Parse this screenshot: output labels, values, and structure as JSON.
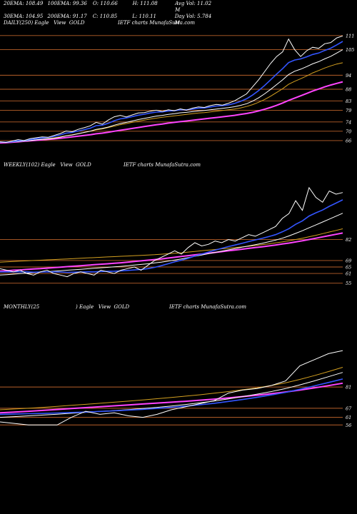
{
  "stats": {
    "ema20": "20EMA: 108.49",
    "ema100": "100EMA: 99.36",
    "open": "O: 110.66",
    "high": "H: 111.08",
    "avgvol": "Avg Vol: 11.02  M",
    "ema30": "30EMA: 104.95",
    "ema200": "200EMA: 91.17",
    "close": "C: 110.85",
    "low": "L: 110.11",
    "dayvol": "Day Vol: 5.784  M"
  },
  "panels": [
    {
      "title_left": "DAILY(250) Eagle   View  GOLD",
      "title_right": "IETF charts MunafaSutra.com",
      "levels": [
        "111",
        "105",
        "94",
        "88",
        "83",
        "79",
        "74",
        "70",
        "66"
      ]
    },
    {
      "title_left": "WEEKLY(102) Eagle   View  GOLD",
      "title_right": "IETF charts MunafaSutra.com",
      "levels": [
        "82",
        "69",
        "65",
        "61",
        "55"
      ]
    },
    {
      "title_left": "MONTHLY(25",
      "title_mid": ") Eagle   View  GOLD",
      "title_right": "IETF charts MunafaSutra.com",
      "levels": [
        "81",
        "67",
        "61",
        "56"
      ]
    }
  ],
  "chart_data": [
    {
      "type": "line",
      "title": "DAILY(250) Eagle View GOLD",
      "ylim": [
        62,
        114
      ],
      "levels": [
        111,
        105,
        94,
        88,
        83,
        79,
        74,
        70,
        66
      ],
      "series": [
        {
          "color": "#ffffff",
          "values": [
            65.5,
            65.2,
            65.8,
            66.4,
            66.0,
            66.8,
            67.2,
            67.6,
            67.4,
            68.2,
            69.0,
            70.1,
            69.8,
            70.8,
            71.5,
            72.3,
            73.8,
            73.0,
            74.8,
            76.2,
            76.8,
            76.1,
            77.0,
            77.8,
            78.0,
            78.6,
            79.0,
            78.5,
            79.2,
            78.8,
            79.6,
            79.0,
            79.9,
            80.4,
            80.2,
            81.0,
            81.5,
            81.2,
            82.0,
            83.0,
            84.5,
            86.0,
            89.0,
            92.0,
            95.5,
            99.0,
            102.0,
            104.0,
            109.5,
            105.0,
            102.0,
            104.5,
            106.0,
            105.5,
            107.5,
            108.0,
            110.0,
            110.85
          ]
        },
        {
          "color": "#3355ff",
          "values": [
            65.4,
            65.3,
            65.5,
            65.9,
            66.0,
            66.4,
            66.8,
            67.1,
            67.3,
            67.8,
            68.4,
            69.2,
            69.5,
            70.1,
            70.7,
            71.3,
            72.4,
            72.6,
            73.4,
            74.5,
            75.3,
            75.7,
            76.3,
            76.9,
            77.3,
            77.8,
            78.2,
            78.3,
            78.7,
            78.8,
            79.2,
            79.2,
            79.5,
            79.9,
            80.0,
            80.4,
            80.8,
            81.0,
            81.3,
            81.9,
            82.8,
            83.9,
            85.5,
            87.4,
            89.6,
            92.0,
            94.5,
            96.8,
            99.4,
            100.5,
            101.0,
            101.9,
            102.9,
            103.5,
            104.6,
            105.6,
            107.0,
            108.49
          ]
        },
        {
          "color": "#ffffff",
          "values": [
            65.3,
            65.3,
            65.4,
            65.6,
            65.8,
            66.0,
            66.3,
            66.5,
            66.7,
            67.0,
            67.4,
            68.0,
            68.4,
            68.9,
            69.5,
            70.0,
            70.8,
            71.2,
            71.8,
            72.6,
            73.3,
            73.8,
            74.4,
            75.0,
            75.5,
            76.0,
            76.5,
            76.8,
            77.2,
            77.5,
            77.9,
            78.1,
            78.4,
            78.7,
            78.9,
            79.2,
            79.5,
            79.8,
            80.1,
            80.5,
            81.1,
            81.8,
            82.9,
            84.3,
            86.0,
            87.9,
            90.0,
            92.0,
            94.3,
            95.7,
            96.6,
            97.7,
            98.9,
            99.8,
            101.0,
            102.1,
            103.5,
            104.95
          ]
        },
        {
          "color": "#d4a020",
          "values": [
            65.2,
            65.3,
            65.4,
            65.6,
            65.8,
            66.0,
            66.3,
            66.6,
            66.9,
            67.2,
            67.6,
            68.1,
            68.5,
            69.0,
            69.5,
            70.0,
            70.6,
            71.0,
            71.6,
            72.2,
            72.8,
            73.3,
            73.8,
            74.3,
            74.8,
            75.2,
            75.6,
            76.0,
            76.3,
            76.6,
            76.9,
            77.2,
            77.5,
            77.8,
            78.0,
            78.3,
            78.6,
            78.9,
            79.2,
            79.5,
            80.0,
            80.6,
            81.4,
            82.4,
            83.6,
            85.0,
            86.6,
            88.2,
            90.1,
            91.4,
            92.5,
            93.7,
            95.0,
            96.0,
            97.1,
            98.0,
            98.8,
            99.36
          ]
        },
        {
          "color": "#ff44ff",
          "values": [
            65.0,
            65.1,
            65.3,
            65.5,
            65.7,
            65.9,
            66.1,
            66.3,
            66.5,
            66.7,
            67.0,
            67.3,
            67.6,
            67.9,
            68.2,
            68.5,
            68.9,
            69.2,
            69.6,
            70.0,
            70.4,
            70.8,
            71.2,
            71.6,
            72.0,
            72.4,
            72.8,
            73.1,
            73.5,
            73.8,
            74.1,
            74.4,
            74.7,
            75.0,
            75.3,
            75.6,
            75.9,
            76.2,
            76.5,
            76.8,
            77.2,
            77.6,
            78.1,
            78.7,
            79.4,
            80.2,
            81.1,
            82.1,
            83.2,
            84.2,
            85.2,
            86.2,
            87.2,
            88.1,
            89.0,
            89.8,
            90.5,
            91.17
          ]
        }
      ]
    },
    {
      "type": "line",
      "title": "WEEKLY(102) Eagle View GOLD",
      "ylim": [
        50,
        125
      ],
      "levels": [
        82,
        69,
        65,
        61,
        55
      ],
      "series": [
        {
          "color": "#ffffff",
          "values": [
            64,
            63,
            62,
            63,
            61,
            60,
            62,
            63,
            61,
            60,
            59,
            61,
            62,
            61,
            60,
            63,
            62,
            61,
            63,
            64,
            65,
            63,
            66,
            69,
            71,
            73,
            75,
            73,
            77,
            80,
            78,
            79,
            81,
            80,
            82,
            81,
            83,
            85,
            84,
            86,
            88,
            90,
            95,
            98,
            106,
            100,
            114,
            108,
            105,
            112,
            110,
            111
          ]
        },
        {
          "color": "#3355ff",
          "values": [
            62,
            62,
            62,
            62,
            62,
            61.8,
            61.9,
            62,
            62,
            61.9,
            61.7,
            61.8,
            61.9,
            62,
            62,
            62.2,
            62.3,
            62.4,
            62.6,
            62.9,
            63.2,
            63.5,
            64,
            64.8,
            65.8,
            67,
            68.2,
            69.2,
            70.4,
            71.8,
            73,
            74.2,
            75.4,
            76.5,
            77.6,
            78.6,
            79.6,
            80.7,
            81.7,
            82.7,
            83.8,
            85,
            86.7,
            88.7,
            91.4,
            93.5,
            96.5,
            98.5,
            100.2,
            102.5,
            104.5,
            106.5
          ]
        },
        {
          "color": "#ffffff",
          "values": [
            60,
            60.3,
            60.6,
            60.9,
            61.2,
            61.5,
            61.8,
            62.1,
            62.4,
            62.7,
            63,
            63.3,
            63.6,
            63.9,
            64.2,
            64.5,
            64.8,
            65.1,
            65.4,
            65.8,
            66.2,
            66.6,
            67,
            67.5,
            68,
            68.6,
            69.3,
            70,
            70.8,
            71.6,
            72.4,
            73.2,
            74,
            74.8,
            75.6,
            76.4,
            77.2,
            78,
            78.8,
            79.6,
            80.6,
            81.6,
            82.8,
            84.2,
            85.8,
            87.4,
            89.2,
            91,
            92.8,
            94.6,
            96.4,
            98.2
          ]
        },
        {
          "color": "#d4a020",
          "values": [
            68,
            68.2,
            68.4,
            68.6,
            68.8,
            69,
            69.2,
            69.4,
            69.6,
            69.8,
            70,
            70.2,
            70.4,
            70.6,
            70.8,
            71,
            71.2,
            71.4,
            71.6,
            71.8,
            72,
            72.2,
            72.4,
            72.6,
            72.9,
            73.2,
            73.5,
            73.8,
            74.2,
            74.6,
            75,
            75.4,
            75.8,
            76.2,
            76.6,
            77,
            77.4,
            77.8,
            78.3,
            78.8,
            79.3,
            79.9,
            80.5,
            81.2,
            82,
            82.8,
            83.7,
            84.6,
            85.6,
            86.6,
            87.6,
            88.6
          ]
        },
        {
          "color": "#ff44ff",
          "values": [
            62.5,
            62.7,
            63,
            63.2,
            63.5,
            63.8,
            64,
            64.3,
            64.6,
            64.9,
            65.2,
            65.5,
            65.8,
            66.1,
            66.4,
            66.7,
            67,
            67.3,
            67.6,
            68,
            68.4,
            68.8,
            69.2,
            69.6,
            70,
            70.5,
            71,
            71.5,
            72,
            72.5,
            73,
            73.5,
            74,
            74.5,
            75,
            75.5,
            76,
            76.5,
            77,
            77.5,
            78,
            78.6,
            79.2,
            79.8,
            80.5,
            81.2,
            82,
            82.8,
            83.6,
            84.4,
            85.2,
            86
          ]
        }
      ]
    },
    {
      "type": "line",
      "title": "MONTHLY(25) Eagle View GOLD",
      "ylim": [
        50,
        130
      ],
      "levels": [
        81,
        67,
        61,
        56
      ],
      "series": [
        {
          "color": "#ffffff",
          "values": [
            58,
            57,
            56,
            56,
            56,
            61,
            65,
            63,
            64,
            62,
            61,
            63,
            66,
            68,
            70,
            72,
            77,
            79,
            80,
            82,
            85,
            95,
            99,
            103,
            105
          ]
        },
        {
          "color": "#3355ff",
          "values": [
            63,
            63.2,
            63.4,
            63.6,
            63.9,
            64.2,
            64.5,
            64.9,
            65.3,
            65.8,
            66.3,
            66.9,
            67.6,
            68.4,
            69.3,
            70.3,
            71.5,
            72.8,
            74.2,
            75.8,
            77.5,
            79.5,
            81.7,
            84,
            86.3
          ]
        },
        {
          "color": "#ffffff",
          "values": [
            61,
            61.5,
            62,
            62.5,
            63.1,
            63.7,
            64.3,
            64.9,
            65.5,
            66.1,
            66.8,
            67.6,
            68.5,
            69.5,
            70.6,
            71.8,
            73.2,
            74.7,
            76.3,
            78,
            80,
            82.4,
            85,
            87.8,
            90.6
          ]
        },
        {
          "color": "#d4a020",
          "values": [
            66,
            66.5,
            67,
            67.6,
            68.2,
            68.9,
            69.6,
            70.3,
            71,
            71.7,
            72.5,
            73.3,
            74.1,
            75,
            75.9,
            76.9,
            78,
            79.2,
            80.5,
            82,
            83.8,
            86,
            88.5,
            91.2,
            94
          ]
        },
        {
          "color": "#ff44ff",
          "values": [
            64,
            64.5,
            65,
            65.6,
            66.2,
            66.8,
            67.4,
            68,
            68.6,
            69.2,
            69.8,
            70.4,
            71,
            71.6,
            72.3,
            73,
            73.8,
            74.7,
            75.6,
            76.6,
            77.7,
            79,
            80.4,
            81.9,
            83.5
          ]
        }
      ]
    }
  ]
}
